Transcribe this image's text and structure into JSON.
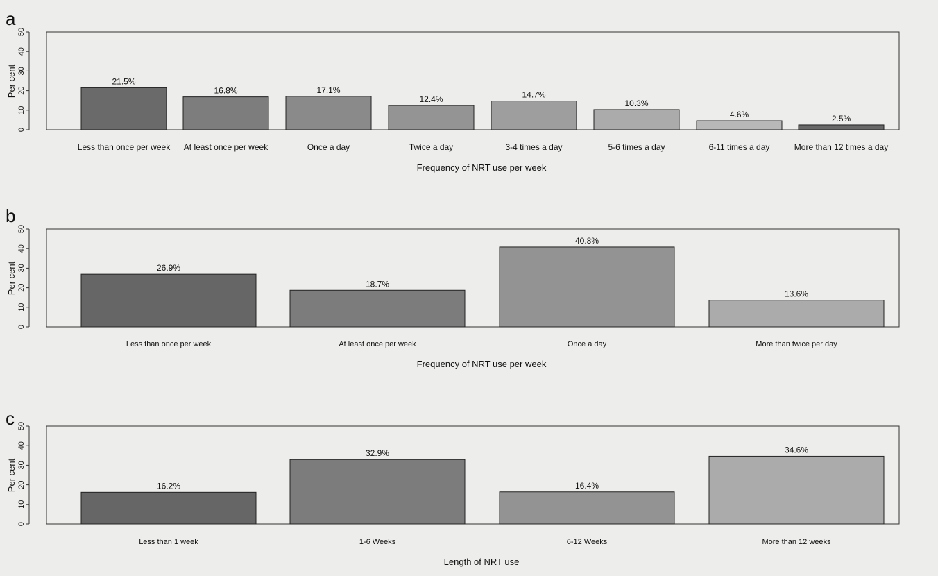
{
  "chart_data": [
    {
      "panel": "a",
      "type": "bar",
      "ylabel": "Per cent",
      "xlabel": "Frequency of NRT use per week",
      "ylim": [
        0,
        50
      ],
      "yticks": [
        0,
        10,
        20,
        30,
        40,
        50
      ],
      "grid": false,
      "categories": [
        "Less than once per week",
        "At least once per week",
        "Once a day",
        "Twice a day",
        "3-4 times a day",
        "5-6 times a day",
        "6-11 times a day",
        "More than 12 times a day"
      ],
      "values": [
        21.5,
        16.8,
        17.1,
        12.4,
        14.7,
        10.3,
        4.6,
        2.5
      ],
      "value_labels": [
        "21.5%",
        "16.8%",
        "17.1%",
        "12.4%",
        "14.7%",
        "10.3%",
        "4.6%",
        "2.5%"
      ],
      "colors": [
        "#6a6a6a",
        "#7d7d7d",
        "#8a8a8a",
        "#949494",
        "#9e9e9e",
        "#ababab",
        "#b8b8b8",
        "#686868"
      ]
    },
    {
      "panel": "b",
      "type": "bar",
      "ylabel": "Per cent",
      "xlabel": "Frequency of NRT use per week",
      "ylim": [
        0,
        50
      ],
      "yticks": [
        0,
        10,
        20,
        30,
        40,
        50
      ],
      "grid": false,
      "categories": [
        "Less than once per week",
        "At least once per week",
        "Once a day",
        "More than twice per day"
      ],
      "values": [
        26.9,
        18.7,
        40.8,
        13.6
      ],
      "value_labels": [
        "26.9%",
        "18.7%",
        "40.8%",
        "13.6%"
      ],
      "colors": [
        "#666666",
        "#7c7c7c",
        "#939393",
        "#ababab"
      ]
    },
    {
      "panel": "c",
      "type": "bar",
      "ylabel": "Per cent",
      "xlabel": "Length of NRT use",
      "ylim": [
        0,
        50
      ],
      "yticks": [
        0,
        10,
        20,
        30,
        40,
        50
      ],
      "grid": false,
      "categories": [
        "Less than 1 week",
        "1-6 Weeks",
        "6-12 Weeks",
        "More than 12 weeks"
      ],
      "values": [
        16.2,
        32.9,
        16.4,
        34.6
      ],
      "value_labels": [
        "16.2%",
        "32.9%",
        "16.4%",
        "34.6%"
      ],
      "colors": [
        "#666666",
        "#7c7c7c",
        "#939393",
        "#ababab"
      ]
    }
  ]
}
